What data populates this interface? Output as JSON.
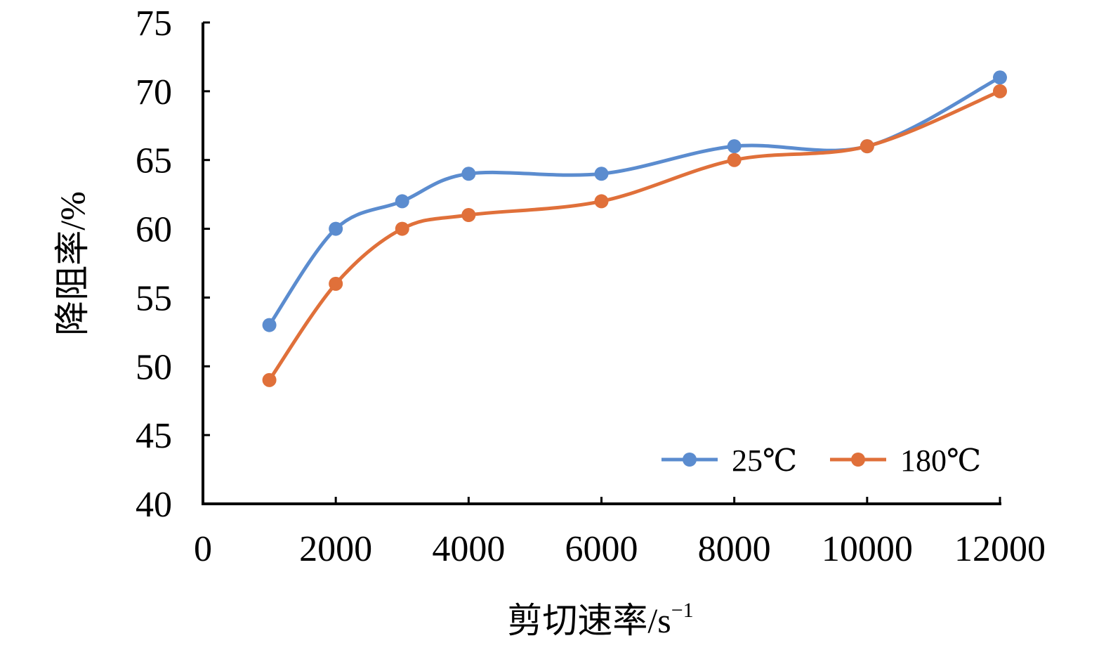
{
  "chart_data": {
    "type": "line",
    "title": "",
    "xlabel": "剪切速率/s",
    "xlabel_superscript": "−1",
    "ylabel": "降阻率/%",
    "xlim": [
      0,
      12000
    ],
    "ylim": [
      40,
      75
    ],
    "x_ticks": [
      "0",
      "2000",
      "4000",
      "6000",
      "8000",
      "10000",
      "12000"
    ],
    "y_ticks": [
      "40",
      "45",
      "50",
      "55",
      "60",
      "65",
      "70",
      "75"
    ],
    "grid": false,
    "smooth": true,
    "legend_position": "bottom-right",
    "x": [
      1000,
      2000,
      3000,
      4000,
      6000,
      8000,
      10000,
      12000
    ],
    "series": [
      {
        "name": "25℃",
        "color": "#5b8ccf",
        "values": [
          53,
          60,
          62,
          64,
          64,
          66,
          66,
          71
        ]
      },
      {
        "name": "180℃",
        "color": "#e0703a",
        "values": [
          49,
          56,
          60,
          61,
          62,
          65,
          66,
          70
        ]
      }
    ]
  }
}
